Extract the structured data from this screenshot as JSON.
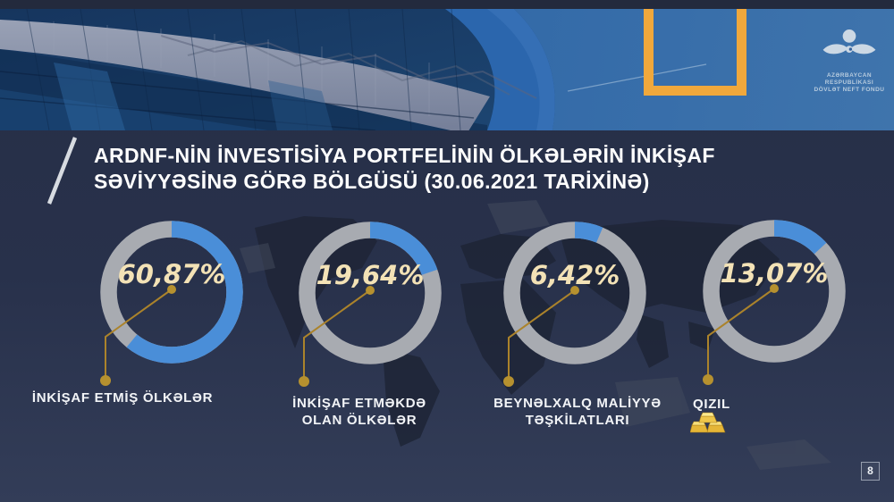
{
  "slide": {
    "page_number": "8",
    "title_line1": "ARDNF-NİN İNVESTİSİYA PORTFELİNİN ÖLKƏLƏRİN İNKİŞAF",
    "title_line2": "SƏVİYYƏSİNƏ GÖRƏ BÖLGÜSÜ (30.06.2021 TARİXİNƏ)"
  },
  "logo": {
    "icon": "sofaz-emblem-icon",
    "org_line1": "AZƏRBAYCAN RESPUBLİKASI",
    "org_line2": "DÖVLƏT NEFT FONDU"
  },
  "chart_data": {
    "type": "pie",
    "variant": "four-donut-gauges",
    "title": "ARDNF-nin investisiya portfelinin ölkələrin inkişaf səviyyəsinə görə bölgüsü (30.06.2021 tarixinə)",
    "unit": "%",
    "start_angle_deg": 0,
    "direction": "clockwise",
    "items": [
      {
        "label": "İNKİŞAF ETMİŞ ÖLKƏLƏR",
        "label_lines": [
          "İNKİŞAF ETMİŞ ÖLKƏLƏR"
        ],
        "value": 60.87,
        "display": "60,87%"
      },
      {
        "label": "İNKİŞAF ETMƏKDƏ OLAN ÖLKƏLƏR",
        "label_lines": [
          "İNKİŞAF ETMƏKDƏ",
          "OLAN ÖLKƏLƏR"
        ],
        "value": 19.64,
        "display": "19,64%"
      },
      {
        "label": "BEYNƏLXALQ MALİYYƏ TƏŞKİLATLARI",
        "label_lines": [
          "BEYNƏLXALQ MALİYYƏ",
          "TƏŞKİLATLARI"
        ],
        "value": 6.42,
        "display": "6,42%"
      },
      {
        "label": "QIZIL",
        "label_lines": [
          "QIZIL"
        ],
        "value": 13.07,
        "display": "13,07%",
        "icon": "gold-bars-icon"
      }
    ],
    "colors": {
      "segment_fill": "#4a8ed8",
      "segment_track": "#a8abb1",
      "value_text": "#f3e2b6",
      "callout": "#ab832b",
      "callout_dot": "#b6912f",
      "accent_orange": "#f0a83c",
      "bar_dark_orange": "#c5871f",
      "bar_light_orange": "#efc27b"
    }
  }
}
